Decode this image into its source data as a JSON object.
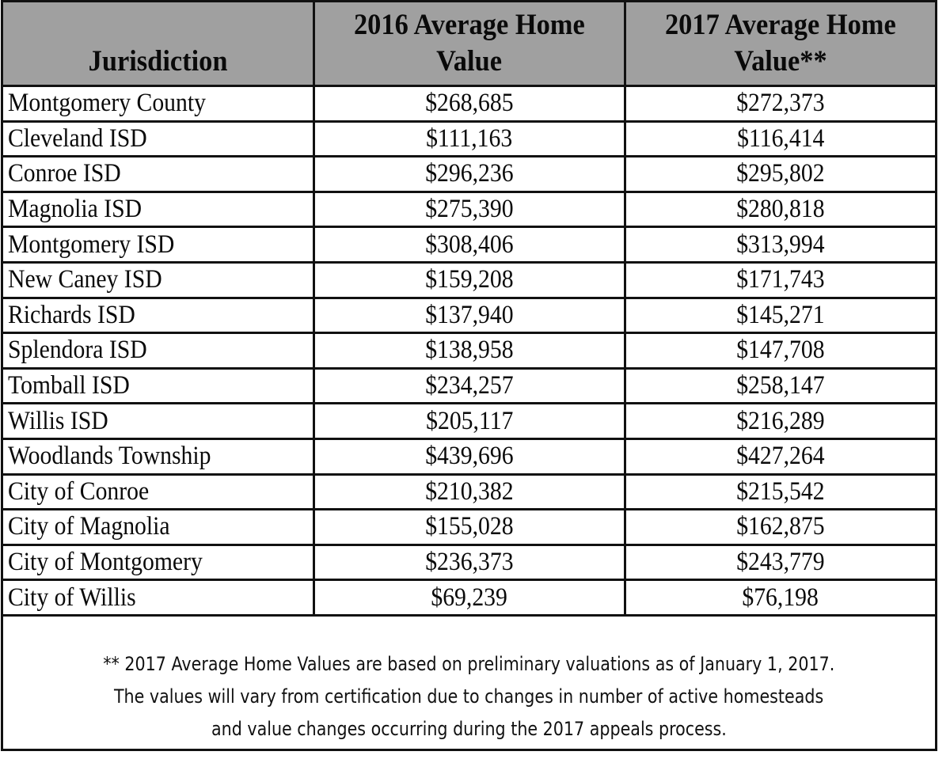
{
  "table": {
    "headers": {
      "jurisdiction": "Jurisdiction",
      "col2016_line1": "2016 Average Home",
      "col2016_line2": "Value",
      "col2017_line1": "2017 Average Home",
      "col2017_line2": "Value**"
    },
    "header_background": "#a0a0a0",
    "rows": [
      {
        "jurisdiction": "Montgomery County",
        "v2016": "$268,685",
        "v2017": "$272,373"
      },
      {
        "jurisdiction": "Cleveland ISD",
        "v2016": "$111,163",
        "v2017": "$116,414"
      },
      {
        "jurisdiction": "Conroe ISD",
        "v2016": "$296,236",
        "v2017": "$295,802"
      },
      {
        "jurisdiction": "Magnolia ISD",
        "v2016": "$275,390",
        "v2017": "$280,818"
      },
      {
        "jurisdiction": "Montgomery ISD",
        "v2016": "$308,406",
        "v2017": "$313,994"
      },
      {
        "jurisdiction": "New Caney ISD",
        "v2016": "$159,208",
        "v2017": "$171,743"
      },
      {
        "jurisdiction": "Richards ISD",
        "v2016": "$137,940",
        "v2017": "$145,271"
      },
      {
        "jurisdiction": "Splendora ISD",
        "v2016": "$138,958",
        "v2017": "$147,708"
      },
      {
        "jurisdiction": "Tomball ISD",
        "v2016": "$234,257",
        "v2017": "$258,147"
      },
      {
        "jurisdiction": "Willis ISD",
        "v2016": "$205,117",
        "v2017": "$216,289"
      },
      {
        "jurisdiction": "Woodlands Township",
        "v2016": "$439,696",
        "v2017": "$427,264"
      },
      {
        "jurisdiction": "City of Conroe",
        "v2016": "$210,382",
        "v2017": "$215,542"
      },
      {
        "jurisdiction": "City of Magnolia",
        "v2016": "$155,028",
        "v2017": "$162,875"
      },
      {
        "jurisdiction": "City of Montgomery",
        "v2016": "$236,373",
        "v2017": "$243,779"
      },
      {
        "jurisdiction": "City of Willis",
        "v2016": "$69,239",
        "v2017": "$76,198"
      }
    ],
    "footnote": {
      "line1": "** 2017 Average Home Values are based on preliminary valuations as of January 1, 2017.",
      "line2": "The values will vary from certification due to changes in number of active homesteads",
      "line3": "and value changes occurring during the 2017 appeals process."
    }
  }
}
